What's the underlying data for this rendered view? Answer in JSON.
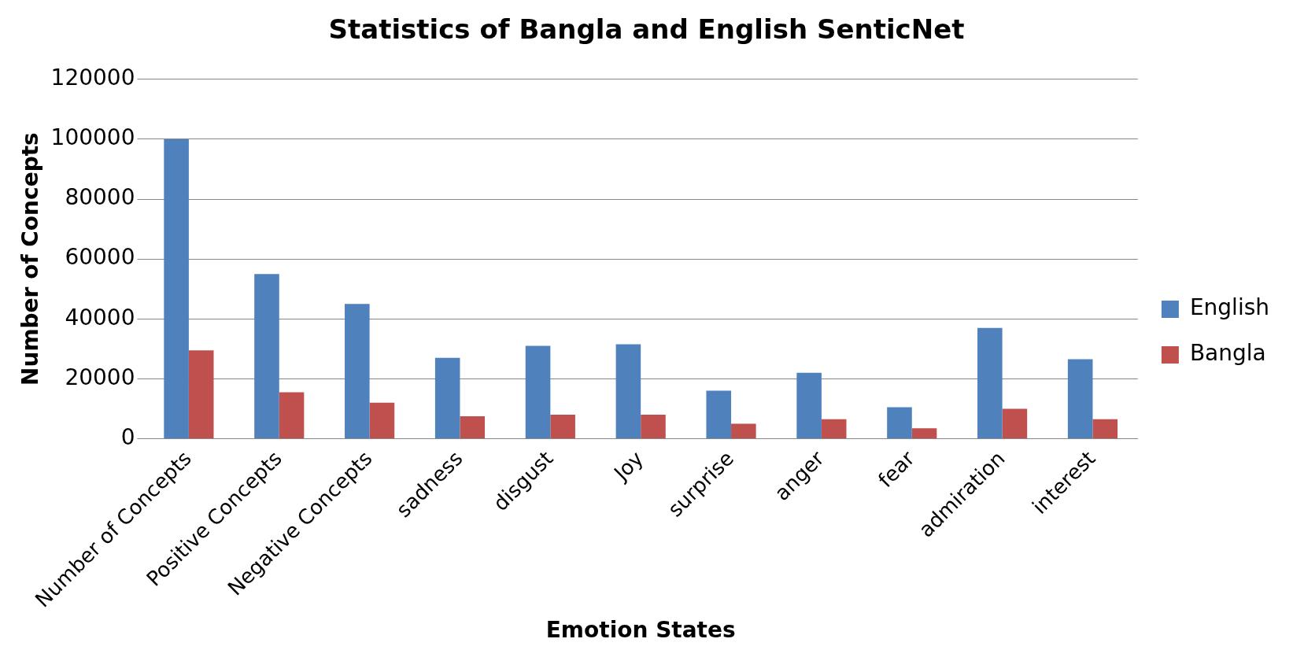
{
  "chart_data": {
    "type": "bar",
    "title": "Statistics of Bangla and English SenticNet",
    "xlabel": "Emotion States",
    "ylabel": "Number of Concepts",
    "categories": [
      "Number of Concepts",
      "Positive Concepts",
      "Negative Concepts",
      "sadness",
      "disgust",
      "Joy",
      "surprise",
      "anger",
      "fear",
      "admiration",
      "interest"
    ],
    "series": [
      {
        "name": "English",
        "color": "#4f81bd",
        "values": [
          100000,
          55000,
          45000,
          27000,
          31000,
          31500,
          16000,
          22000,
          10500,
          37000,
          26500
        ]
      },
      {
        "name": "Bangla",
        "color": "#c0504d",
        "values": [
          29500,
          15500,
          12000,
          7500,
          8000,
          8000,
          5000,
          6500,
          3500,
          10000,
          6500
        ]
      }
    ],
    "ylim": [
      0,
      120000
    ],
    "yticks": [
      0,
      20000,
      40000,
      60000,
      80000,
      100000,
      120000
    ],
    "grid": "y",
    "legend": "right"
  }
}
